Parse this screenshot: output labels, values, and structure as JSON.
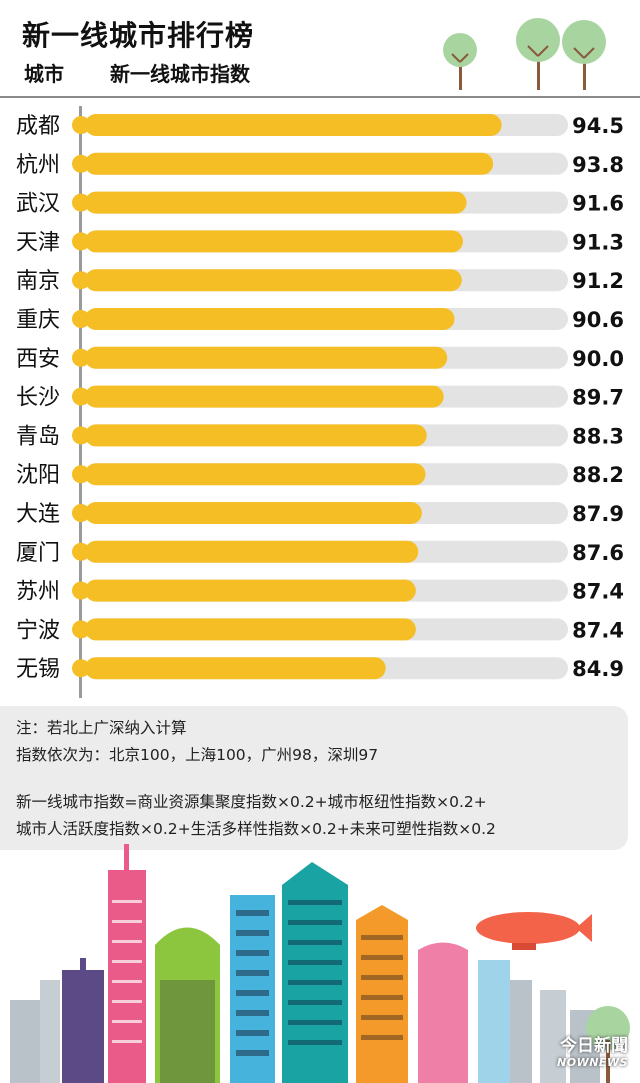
{
  "header": {
    "title": "新一线城市排行榜",
    "col_city": "城市",
    "col_index": "新一线城市指数"
  },
  "chart_data": {
    "type": "bar",
    "orientation": "horizontal",
    "categories": [
      "成都",
      "杭州",
      "武汉",
      "天津",
      "南京",
      "重庆",
      "西安",
      "长沙",
      "青岛",
      "沈阳",
      "大连",
      "厦门",
      "苏州",
      "宁波",
      "无锡"
    ],
    "values": [
      94.5,
      93.8,
      91.6,
      91.3,
      91.2,
      90.6,
      90.0,
      89.7,
      88.3,
      88.2,
      87.9,
      87.6,
      87.4,
      87.4,
      84.9
    ],
    "value_labels": [
      "94.5",
      "93.8",
      "91.6",
      "91.3",
      "91.2",
      "90.6",
      "90.0",
      "89.7",
      "88.3",
      "88.2",
      "87.9",
      "87.6",
      "87.4",
      "87.4",
      "84.9"
    ],
    "xlim": [
      60,
      100
    ],
    "grid": false,
    "colors": {
      "bar": "#F5BE24",
      "track": "#E3E3E3",
      "dot": "#F5BE24"
    }
  },
  "note": {
    "line1": "注：若北上广深纳入计算",
    "line2": "指数依次为：北京100，上海100，广州98，深圳97",
    "line3": "新一线城市指数=商业资源集聚度指数×0.2+城市枢纽性指数×0.2+",
    "line4": "城市人活跃度指数×0.2+生活多样性指数×0.2+未来可塑性指数×0.2"
  },
  "brand": {
    "main": "今日新聞",
    "sub": "NOWNEWS"
  },
  "icons": [
    "tree-icon",
    "city-skyline-illustration",
    "blimp-icon",
    "nownews-logo"
  ]
}
